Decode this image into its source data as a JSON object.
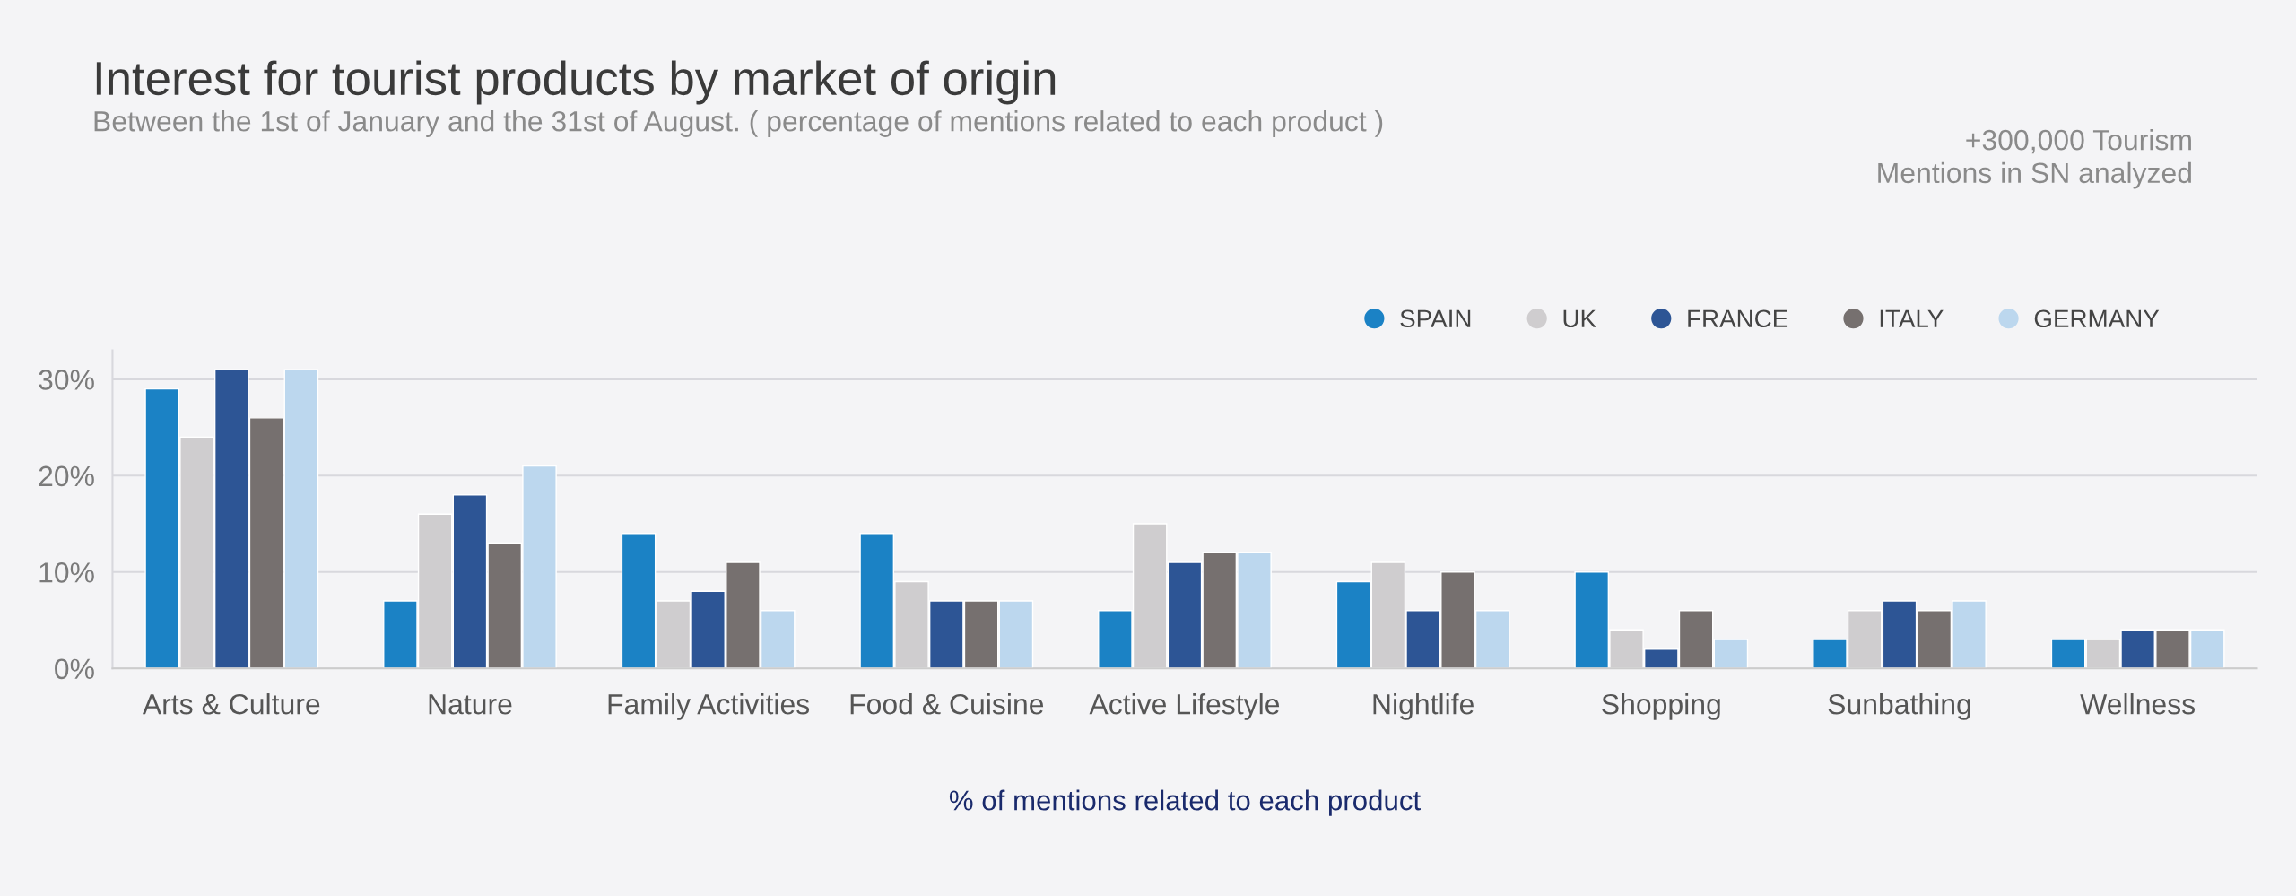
{
  "chart_data": {
    "type": "bar",
    "title": "Interest for tourist products by market of origin",
    "subtitle": "Between the 1st of January and the 31st of August. ( percentage of mentions related to each product )",
    "xlabel": "% of mentions related to each product",
    "annotations": [
      "+300,000 Tourism\nMentions in SN analyzed"
    ],
    "categories": [
      "Arts & Culture",
      "Nature",
      "Family Activities",
      "Food & Cuisine",
      "Active Lifestyle",
      "Nightlife",
      "Shopping",
      "Sunbathing",
      "Wellness"
    ],
    "series": [
      {
        "name": "SPAIN",
        "color": "#1b82c5",
        "values": [
          29,
          7,
          14,
          14,
          6,
          9,
          10,
          3,
          3
        ]
      },
      {
        "name": "UK",
        "color": "#cfcdcf",
        "values": [
          24,
          16,
          7,
          9,
          15,
          11,
          4,
          6,
          3
        ]
      },
      {
        "name": "FRANCE",
        "color": "#2d5595",
        "values": [
          31,
          18,
          8,
          7,
          11,
          6,
          2,
          7,
          4
        ]
      },
      {
        "name": "ITALY",
        "color": "#76706f",
        "values": [
          26,
          13,
          11,
          7,
          12,
          10,
          6,
          6,
          4
        ]
      },
      {
        "name": "GERMANY",
        "color": "#bcd7ee",
        "values": [
          31,
          21,
          6,
          7,
          12,
          6,
          3,
          7,
          4
        ]
      }
    ],
    "ylim": [
      0,
      33
    ],
    "yticks": [
      {
        "value": 0,
        "label": "0%"
      },
      {
        "value": 10,
        "label": "10%"
      },
      {
        "value": 20,
        "label": "20%"
      },
      {
        "value": 30,
        "label": "30%"
      }
    ],
    "grid": "y",
    "legend": "top right"
  }
}
